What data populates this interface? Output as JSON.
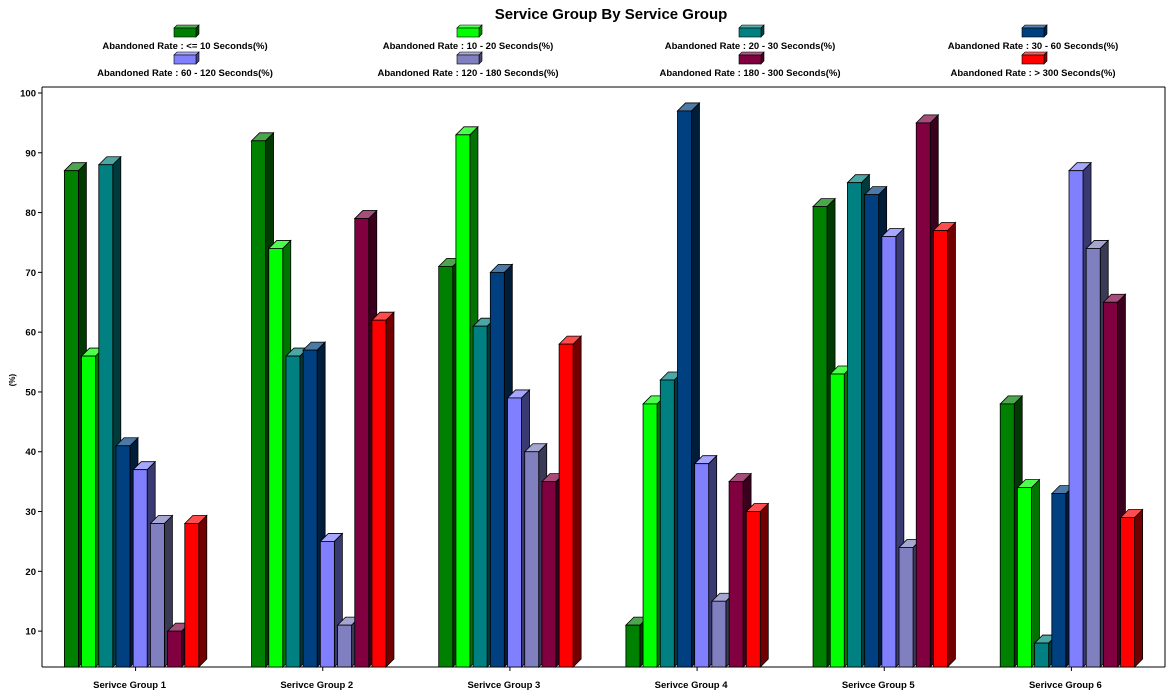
{
  "chart_data": {
    "type": "bar",
    "title": "Service Group By Service Group",
    "xlabel": "",
    "ylabel": "(%)",
    "ylim": [
      4,
      101
    ],
    "yticks": [
      10,
      20,
      30,
      40,
      50,
      60,
      70,
      80,
      90,
      100
    ],
    "grid": false,
    "legend_position": "top",
    "categories": [
      "Serivce Group 1",
      "Serivce Group 2",
      "Serivce Group 3",
      "Serivce Group 4",
      "Serivce Group 5",
      "Serivce Group 6"
    ],
    "series": [
      {
        "name": "Abandoned Rate : <= 10 Seconds(%)",
        "color": "#008000",
        "values": [
          87,
          92,
          71,
          11,
          81,
          48
        ]
      },
      {
        "name": "Abandoned Rate : 10 - 20 Seconds(%)",
        "color": "#00ff00",
        "values": [
          56,
          74,
          93,
          48,
          53,
          34
        ]
      },
      {
        "name": "Abandoned Rate : 20 - 30 Seconds(%)",
        "color": "#008080",
        "values": [
          88,
          56,
          61,
          52,
          85,
          8
        ]
      },
      {
        "name": "Abandoned Rate : 30 - 60 Seconds(%)",
        "color": "#004080",
        "values": [
          41,
          57,
          70,
          97,
          83,
          33
        ]
      },
      {
        "name": "Abandoned Rate : 60 - 120 Seconds(%)",
        "color": "#8080ff",
        "values": [
          37,
          25,
          49,
          38,
          76,
          87
        ]
      },
      {
        "name": "Abandoned Rate : 120 - 180 Seconds(%)",
        "color": "#8080c0",
        "values": [
          28,
          11,
          40,
          15,
          24,
          74
        ]
      },
      {
        "name": "Abandoned Rate : 180 - 300 Seconds(%)",
        "color": "#800040",
        "values": [
          10,
          79,
          35,
          35,
          95,
          65
        ]
      },
      {
        "name": "Abandoned Rate : > 300 Seconds(%)",
        "color": "#ff0000",
        "values": [
          28,
          62,
          58,
          30,
          77,
          29
        ]
      }
    ]
  }
}
